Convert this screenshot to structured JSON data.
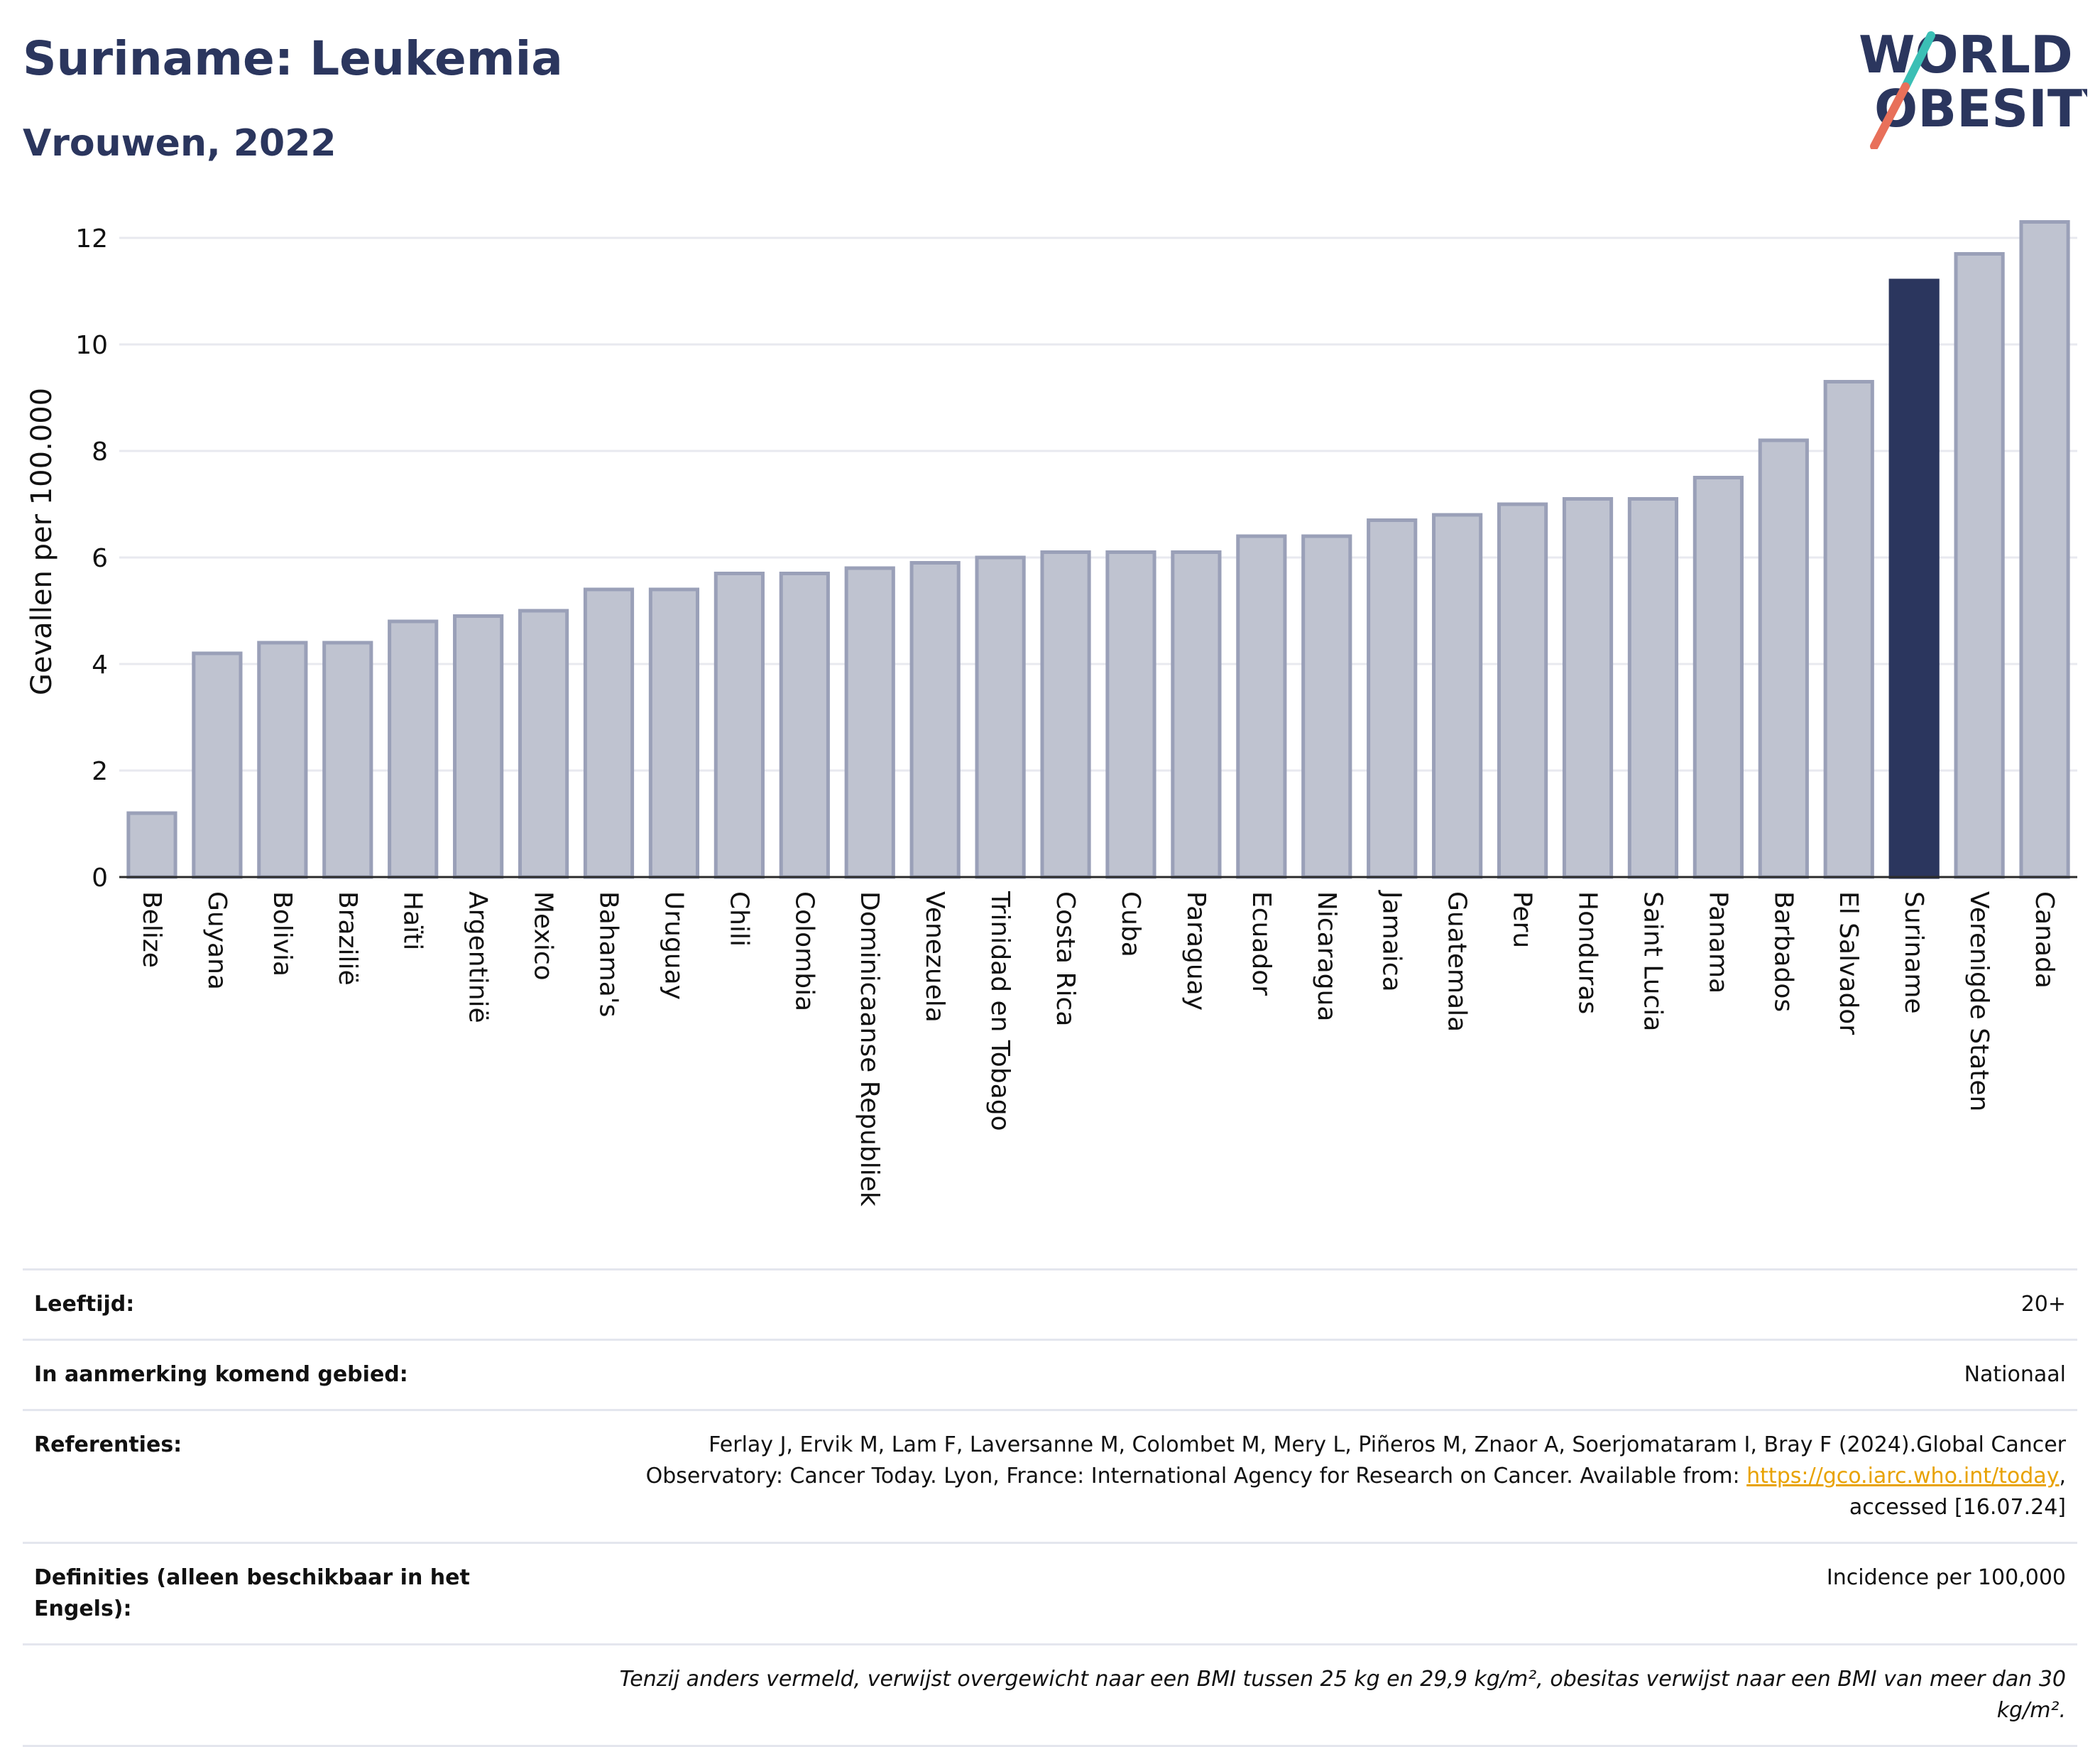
{
  "header": {
    "title": "Suriname: Leukemia",
    "subtitle": "Vrouwen, 2022"
  },
  "logo": {
    "line1": "WORLD",
    "line2": "OBESITY",
    "icon": "world-obesity-logo"
  },
  "colors": {
    "bar": "#bfc3d0",
    "bar_stroke": "#9aa0b8",
    "highlight": "#2b365e",
    "text": "#2b365e",
    "link": "#e8a200"
  },
  "chart_data": {
    "type": "bar",
    "ylabel": "Gevallen per 100.000",
    "xlabel": "",
    "ylim": [
      0,
      12.6
    ],
    "yticks": [
      0,
      2,
      4,
      6,
      8,
      10,
      12
    ],
    "grid": true,
    "highlight": "Suriname",
    "categories": [
      "Belize",
      "Guyana",
      "Bolivia",
      "Brazilië",
      "Haïti",
      "Argentinië",
      "Mexico",
      "Bahama's",
      "Uruguay",
      "Chili",
      "Colombia",
      "Dominicaanse Republiek",
      "Venezuela",
      "Trinidad en Tobago",
      "Costa Rica",
      "Cuba",
      "Paraguay",
      "Ecuador",
      "Nicaragua",
      "Jamaica",
      "Guatemala",
      "Peru",
      "Honduras",
      "Saint Lucia",
      "Panama",
      "Barbados",
      "El Salvador",
      "Suriname",
      "Verenigde Staten",
      "Canada"
    ],
    "values": [
      1.2,
      4.2,
      4.4,
      4.4,
      4.8,
      4.9,
      5.0,
      5.4,
      5.4,
      5.7,
      5.7,
      5.8,
      5.9,
      6.0,
      6.1,
      6.1,
      6.1,
      6.4,
      6.4,
      6.7,
      6.8,
      7.0,
      7.1,
      7.1,
      7.5,
      8.2,
      9.3,
      11.2,
      11.7,
      12.3
    ]
  },
  "info": {
    "age_label": "Leeftijd:",
    "age_value": "20+",
    "area_label": "In aanmerking komend gebied:",
    "area_value": "Nationaal",
    "ref_label": "Referenties:",
    "ref_text_1": "Ferlay J, Ervik M, Lam F, Laversanne M, Colombet M, Mery L, Piñeros M, Znaor A, Soerjomataram I, Bray F (2024).Global Cancer Observatory: Cancer Today. Lyon, France: International Agency for Research on Cancer. Available from: ",
    "ref_link": "https://gco.iarc.who.int/today",
    "ref_text_2": ", accessed [16.07.24]",
    "def_label": "Definities (alleen beschikbaar in het Engels):",
    "def_value": "Incidence per 100,000",
    "note": "Tenzij anders vermeld, verwijst overgewicht naar een BMI tussen 25 kg en 29,9 kg/m², obesitas verwijst naar een BMI van meer dan 30 kg/m²."
  }
}
